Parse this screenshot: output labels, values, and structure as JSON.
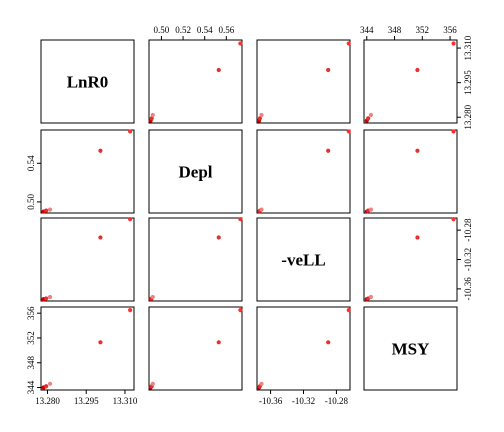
{
  "chart_data": {
    "type": "scatter",
    "layout": "pairs-matrix",
    "variables": [
      "LnR0",
      "Depl",
      "-veLL",
      "MSY"
    ],
    "x_axis_ticks": {
      "LnR0": [
        "13.280",
        "13.295",
        "13.310"
      ],
      "Depl": [
        "0.50",
        "0.52",
        "0.54",
        "0.56"
      ],
      "-veLL": [
        "-10.36",
        "-10.32",
        "-10.28"
      ],
      "MSY": [
        "344",
        "348",
        "352",
        "356"
      ]
    },
    "y_axis_ticks": {
      "LnR0": [
        "13.280",
        "13.295",
        "13.310"
      ],
      "Depl": [
        "0.50",
        "0.54"
      ],
      "-veLL": [
        "-10.36",
        "-10.32",
        "-10.28"
      ],
      "MSY": [
        "344",
        "348",
        "352",
        "356"
      ]
    },
    "ranges": {
      "LnR0": [
        13.2775,
        13.3135
      ],
      "Depl": [
        0.4885,
        0.5745
      ],
      "-veLL": [
        -10.3765,
        -10.2635
      ],
      "MSY": [
        343.6,
        357.0
      ]
    },
    "points": [
      {
        "LnR0": 13.2785,
        "Depl": 0.49,
        "-veLL": -10.374,
        "MSY": 344.0,
        "color": "#cc0000"
      },
      {
        "LnR0": 13.2795,
        "Depl": 0.491,
        "-veLL": -10.373,
        "MSY": 344.2,
        "color": "#e03030"
      },
      {
        "LnR0": 13.281,
        "Depl": 0.492,
        "-veLL": -10.371,
        "MSY": 344.6,
        "color": "#f08080"
      },
      {
        "LnR0": 13.3005,
        "Depl": 0.553,
        "-veLL": -10.29,
        "MSY": 351.3,
        "color": "#e63030"
      },
      {
        "LnR0": 13.312,
        "Depl": 0.573,
        "-veLL": -10.265,
        "MSY": 356.5,
        "color": "#ff3030"
      }
    ],
    "grid": false,
    "legend": "none"
  }
}
